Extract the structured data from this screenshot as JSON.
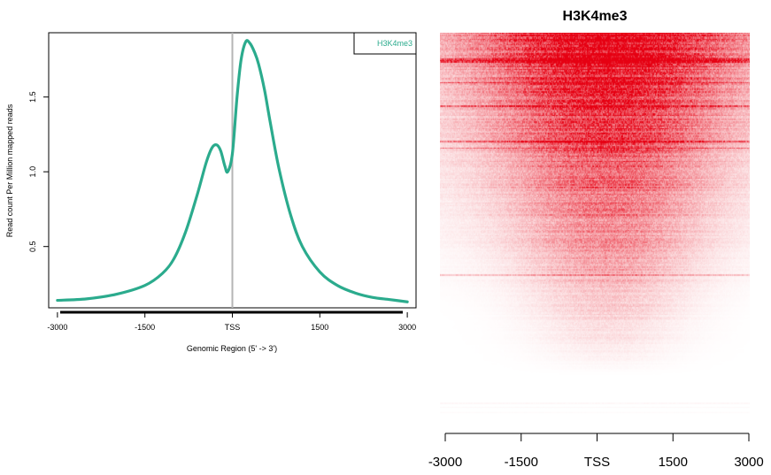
{
  "chart_data": [
    {
      "type": "line",
      "title": "",
      "xlabel": "Genomic Region (5' -> 3')",
      "ylabel": "Read count Per Million mapped reads",
      "xlim": [
        -3150,
        3150
      ],
      "ylim": [
        0.09,
        1.93
      ],
      "x_ticks": [
        -3000,
        -1500,
        0,
        1500,
        3000
      ],
      "x_tick_labels": [
        "-3000",
        "-1500",
        "TSS",
        "1500",
        "3000"
      ],
      "y_ticks": [
        0.5,
        1.0,
        1.5
      ],
      "y_tick_labels": [
        "0.5",
        "1.0",
        "1.5"
      ],
      "reference_line_x": 0,
      "legend_position": "top-right",
      "grid": false,
      "series": [
        {
          "name": "H3K4me3",
          "color": "#2bab8d",
          "x": [
            -3000,
            -2500,
            -2000,
            -1500,
            -1200,
            -1000,
            -800,
            -600,
            -450,
            -350,
            -270,
            -200,
            -130,
            -80,
            0,
            80,
            150,
            230,
            300,
            380,
            450,
            550,
            650,
            800,
            1000,
            1200,
            1500,
            1800,
            2100,
            2400,
            2700,
            3000
          ],
          "y": [
            0.14,
            0.15,
            0.18,
            0.24,
            0.32,
            0.42,
            0.6,
            0.85,
            1.06,
            1.16,
            1.18,
            1.14,
            1.04,
            1.0,
            1.12,
            1.5,
            1.75,
            1.87,
            1.86,
            1.8,
            1.72,
            1.55,
            1.33,
            1.02,
            0.71,
            0.5,
            0.33,
            0.24,
            0.19,
            0.16,
            0.145,
            0.13
          ]
        }
      ]
    },
    {
      "type": "heatmap",
      "title": "H3K4me3",
      "xlabel": "",
      "ylabel": "",
      "xlim": [
        -3000,
        3000
      ],
      "x_ticks": [
        -3000,
        -1500,
        0,
        1500,
        3000
      ],
      "x_tick_labels": [
        "-3000",
        "-1500",
        "TSS",
        "1500",
        "3000"
      ],
      "color_low": "#ffffff",
      "color_high": "#e60012",
      "row_count": 300,
      "signal_center": 250,
      "rows_sorted_by_signal": "descending"
    }
  ]
}
